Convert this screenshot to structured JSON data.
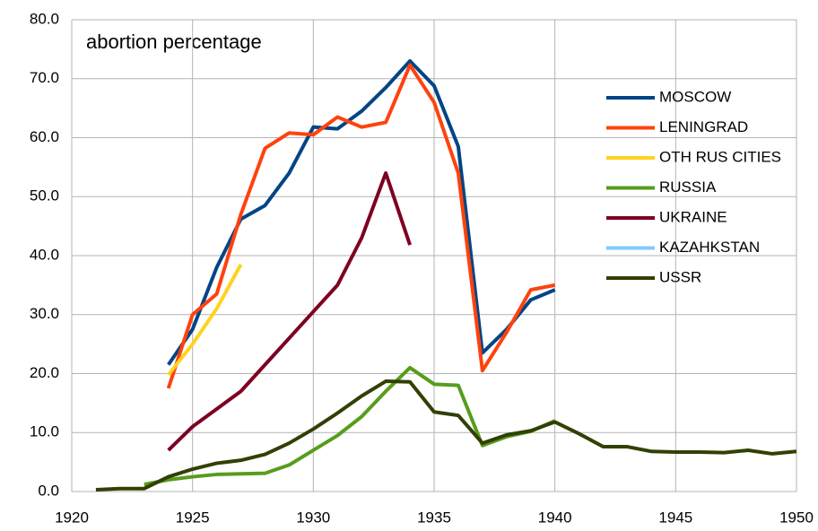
{
  "chart_data": {
    "type": "line",
    "title": "abortion percentage",
    "x": [
      1921,
      1922,
      1923,
      1924,
      1925,
      1926,
      1927,
      1928,
      1929,
      1930,
      1931,
      1932,
      1933,
      1934,
      1935,
      1936,
      1937,
      1938,
      1939,
      1940,
      1941,
      1942,
      1943,
      1944,
      1945,
      1946,
      1947,
      1948,
      1949,
      1950
    ],
    "series": [
      {
        "name": "MOSCOW",
        "color": "#004586",
        "values": [
          null,
          null,
          null,
          21.5,
          27.5,
          38,
          46.2,
          48.5,
          54,
          61.8,
          61.5,
          64.5,
          68.5,
          73,
          68.8,
          58.5,
          23.5,
          27.5,
          32.5,
          34.2,
          null,
          null,
          null,
          null,
          null,
          null,
          null,
          null,
          null,
          null
        ]
      },
      {
        "name": "LENINGRAD",
        "color": "#ff420e",
        "values": [
          null,
          null,
          null,
          17.5,
          30,
          33.5,
          47,
          58.2,
          60.8,
          60.5,
          63.5,
          61.8,
          62.6,
          72.3,
          66,
          54,
          20.5,
          27,
          34.2,
          35,
          null,
          null,
          null,
          null,
          null,
          null,
          null,
          null,
          null,
          null
        ]
      },
      {
        "name": "OTH RUS CITIES",
        "color": "#ffd320",
        "values": [
          null,
          null,
          null,
          19.8,
          25,
          31,
          38.5,
          null,
          null,
          null,
          null,
          null,
          null,
          null,
          null,
          null,
          null,
          null,
          null,
          null,
          null,
          null,
          null,
          null,
          null,
          null,
          null,
          null,
          null,
          null
        ]
      },
      {
        "name": "RUSSIA",
        "color": "#579d1c",
        "values": [
          null,
          null,
          1.2,
          2,
          2.5,
          2.9,
          3,
          3.1,
          4.5,
          7,
          9.5,
          12.7,
          17,
          21,
          18.2,
          18,
          7.8,
          9.3,
          10.2,
          12,
          null,
          null,
          null,
          null,
          null,
          null,
          null,
          null,
          null,
          null
        ]
      },
      {
        "name": "UKRAINE",
        "color": "#7e0021",
        "values": [
          null,
          null,
          null,
          7,
          11,
          14,
          17,
          21.5,
          26,
          30.5,
          35,
          43,
          54,
          41.8,
          null,
          null,
          null,
          null,
          null,
          null,
          null,
          null,
          null,
          null,
          null,
          null,
          null,
          null,
          null,
          null
        ]
      },
      {
        "name": "KAZAHKSTAN",
        "color": "#83caff",
        "values": [
          null,
          null,
          null,
          null,
          null,
          null,
          null,
          null,
          null,
          null,
          null,
          null,
          null,
          null,
          null,
          null,
          null,
          null,
          null,
          null,
          null,
          null,
          null,
          null,
          null,
          null,
          null,
          null,
          null,
          null
        ]
      },
      {
        "name": "USSR",
        "color": "#314004",
        "values": [
          0.3,
          0.5,
          0.5,
          2.5,
          3.8,
          4.8,
          5.3,
          6.3,
          8.2,
          10.6,
          13.3,
          16.2,
          18.7,
          18.6,
          13.5,
          12.9,
          8.2,
          9.6,
          10.3,
          11.8,
          9.8,
          7.6,
          7.6,
          6.8,
          6.7,
          6.7,
          6.6,
          7.0,
          6.4,
          6.8
        ]
      }
    ],
    "xlim": [
      1920,
      1950
    ],
    "xticks": [
      1920,
      1925,
      1930,
      1935,
      1940,
      1945,
      1950
    ],
    "ylim": [
      0,
      80
    ],
    "yticks": [
      {
        "value": 0,
        "label": "0.0"
      },
      {
        "value": 10,
        "label": "10.0"
      },
      {
        "value": 20,
        "label": "20.0"
      },
      {
        "value": 30,
        "label": "30.0"
      },
      {
        "value": 40,
        "label": "40.0"
      },
      {
        "value": 50,
        "label": "50.0"
      },
      {
        "value": 60,
        "label": "60.0"
      },
      {
        "value": 70,
        "label": "70.0"
      },
      {
        "value": 80,
        "label": "80.0"
      }
    ],
    "grid": true,
    "legend": "right"
  }
}
